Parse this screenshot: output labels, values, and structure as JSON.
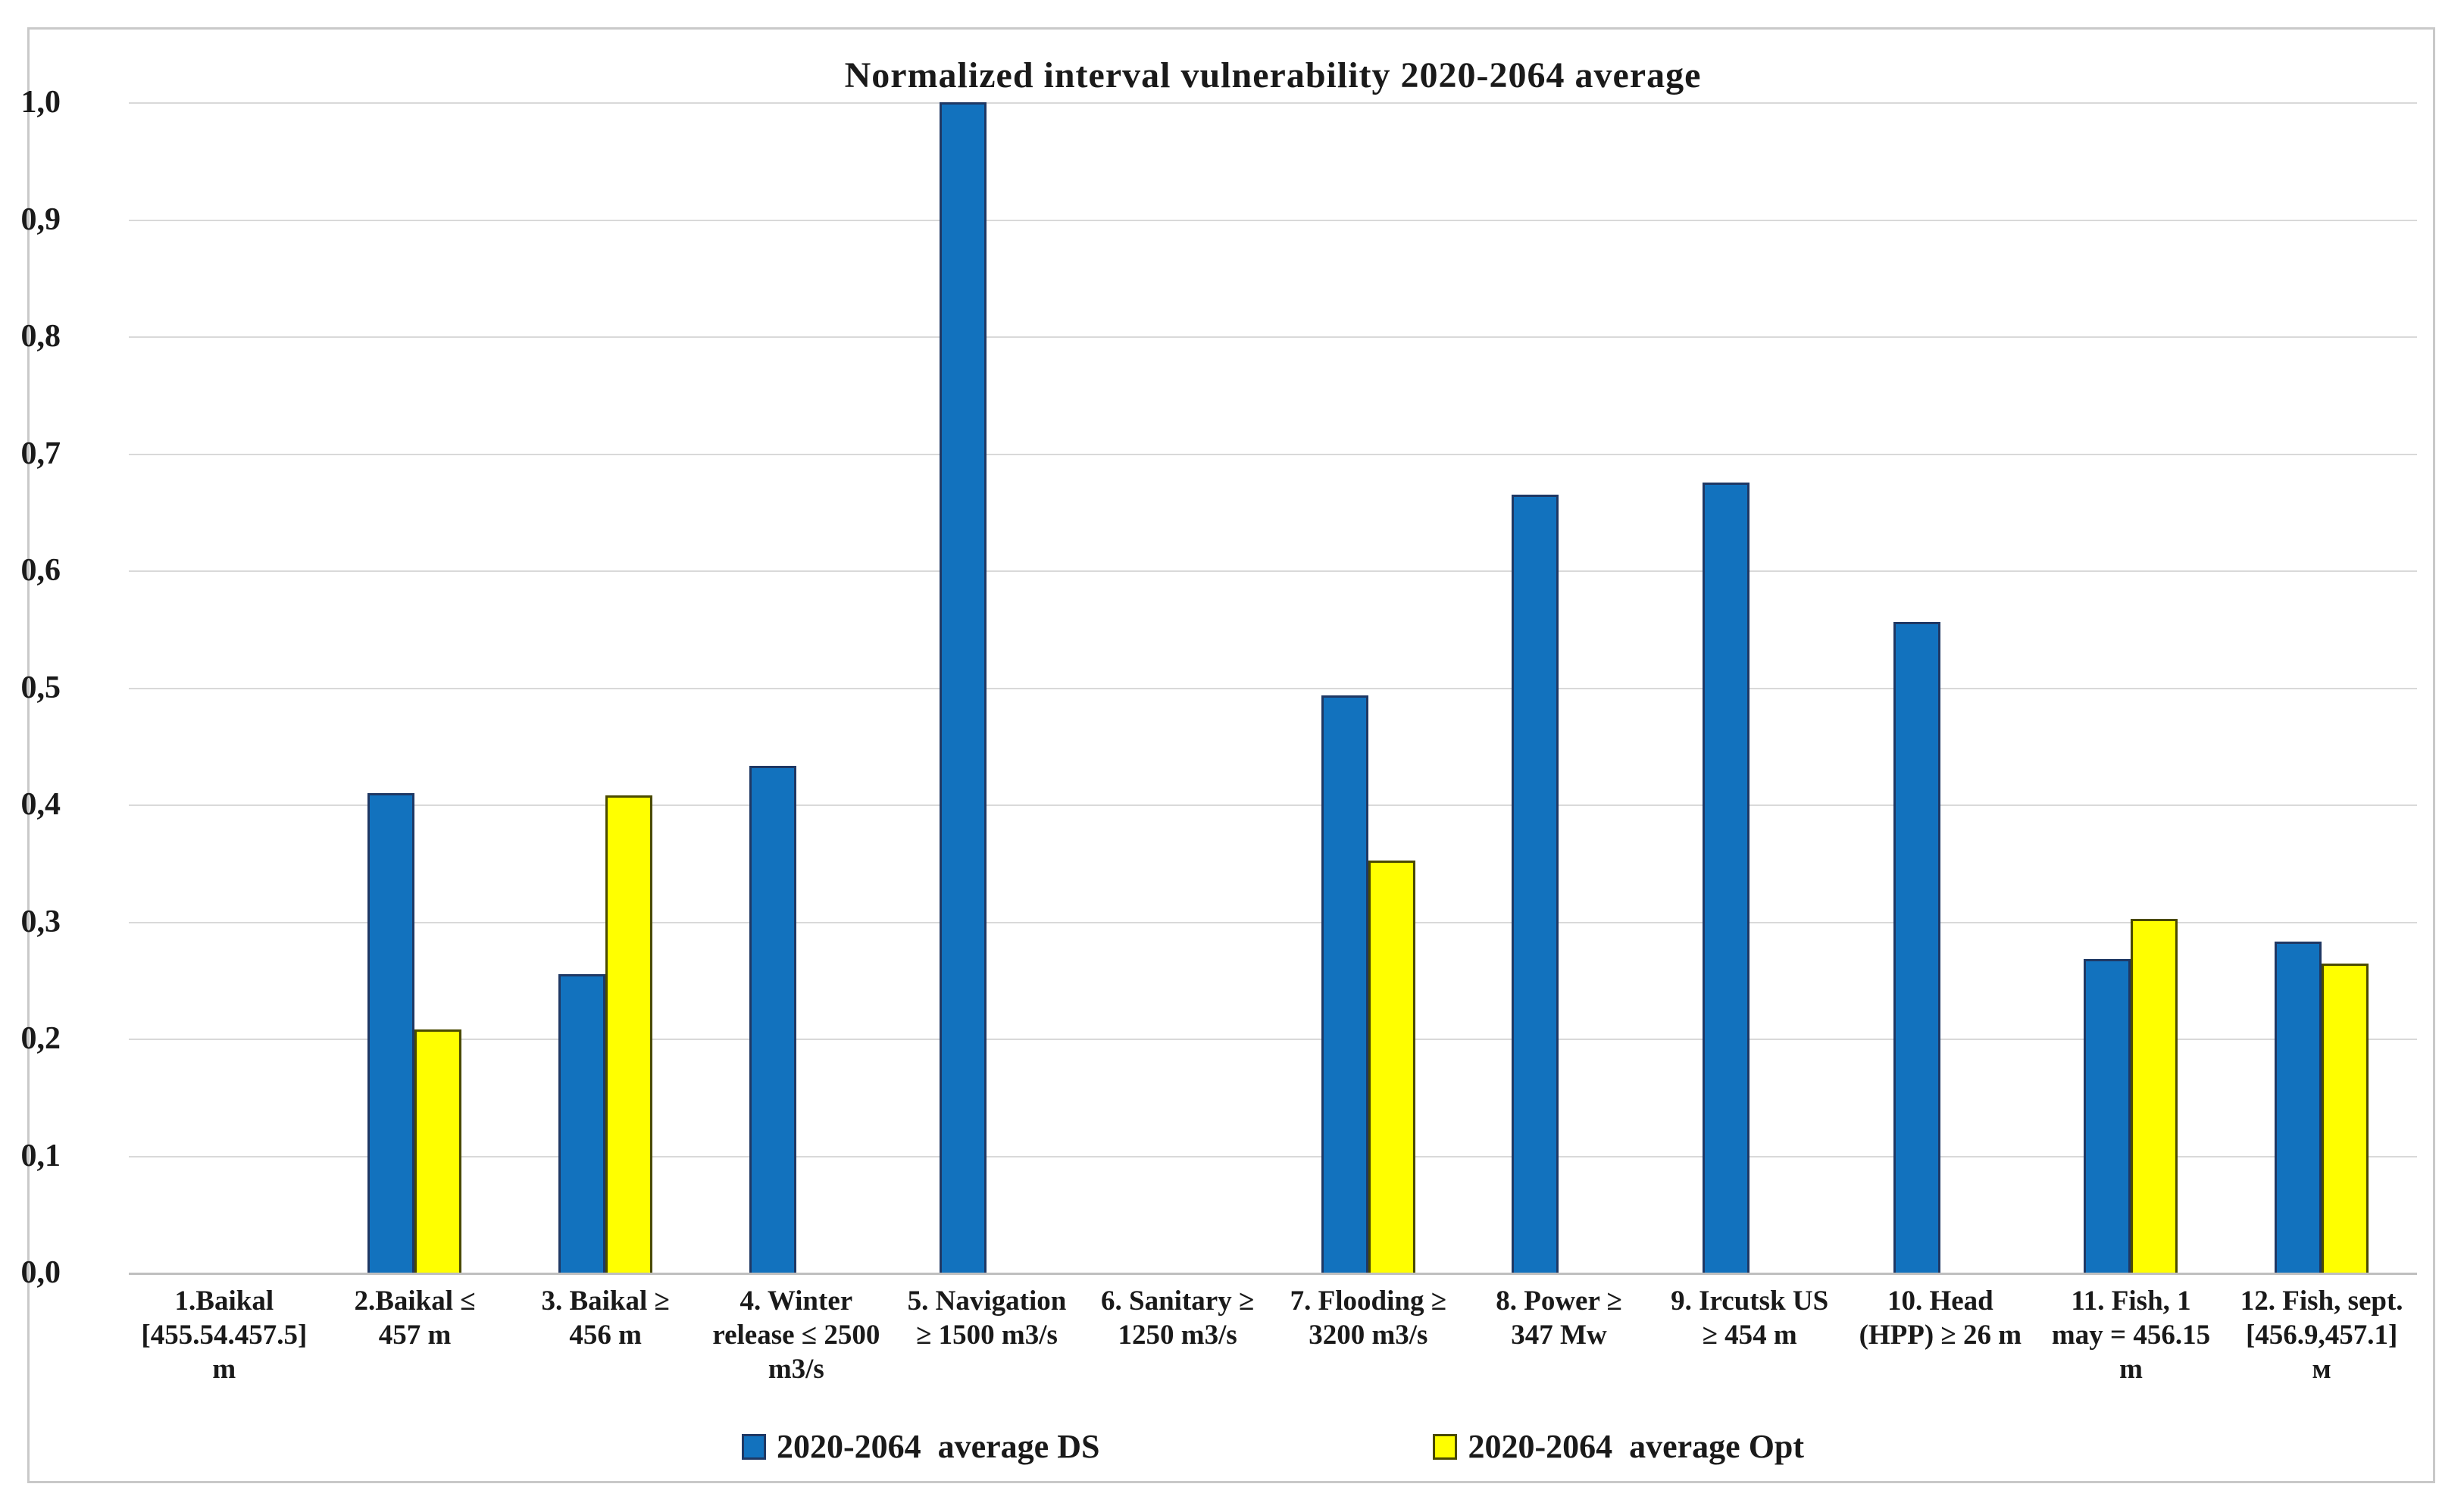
{
  "title": "Normalized interval vulnerability 2020-2064 average",
  "colors": {
    "ds_fill": "#1272be",
    "ds_border": "#1f3864",
    "opt_fill": "#ffff00",
    "opt_border": "#4a4a00",
    "gridline": "#d9d9d9",
    "axis_line": "#bfbfbf",
    "figure_border": "#c9c9c9",
    "text": "#1a1a1a"
  },
  "chart_data": {
    "type": "bar",
    "title": "Normalized interval vulnerability 2020-2064 average",
    "grid": true,
    "legend_position": "bottom",
    "ylim": [
      0.0,
      1.0
    ],
    "y_tick_step": 0.1,
    "y_ticks": [
      "0,0",
      "0,1",
      "0,2",
      "0,3",
      "0,4",
      "0,5",
      "0,6",
      "0,7",
      "0,8",
      "0,9",
      "1,0"
    ],
    "categories": [
      [
        "1.Baikal",
        "[455.54.457.5]",
        "m"
      ],
      [
        "2.Baikal ≤",
        "457 m"
      ],
      [
        "3. Baikal ≥",
        "456 m"
      ],
      [
        "4. Winter",
        "release ≤ 2500",
        "m3/s"
      ],
      [
        "5. Navigation",
        "≥ 1500 m3/s"
      ],
      [
        "6. Sanitary ≥",
        "1250 m3/s"
      ],
      [
        "7. Flooding ≥",
        "3200 m3/s"
      ],
      [
        "8. Power ≥",
        "347 Mw"
      ],
      [
        "9. Ircutsk US",
        "≥ 454 m"
      ],
      [
        "10. Head",
        "(HPP) ≥ 26 m"
      ],
      [
        "11. Fish, 1",
        "may = 456.15",
        "m"
      ],
      [
        "12. Fish, sept.",
        "[456.9,457.1]",
        "м"
      ]
    ],
    "series": [
      {
        "name": "2020-2064  average DS",
        "values": [
          0,
          0.41,
          0.255,
          0.433,
          1.0,
          0,
          0.493,
          0.665,
          0.675,
          0.556,
          0.268,
          0.283
        ]
      },
      {
        "name": "2020-2064  average Opt",
        "values": [
          0,
          0.208,
          0.408,
          0,
          0,
          0,
          0.352,
          0,
          0,
          0,
          0.302,
          0.264
        ]
      }
    ]
  }
}
